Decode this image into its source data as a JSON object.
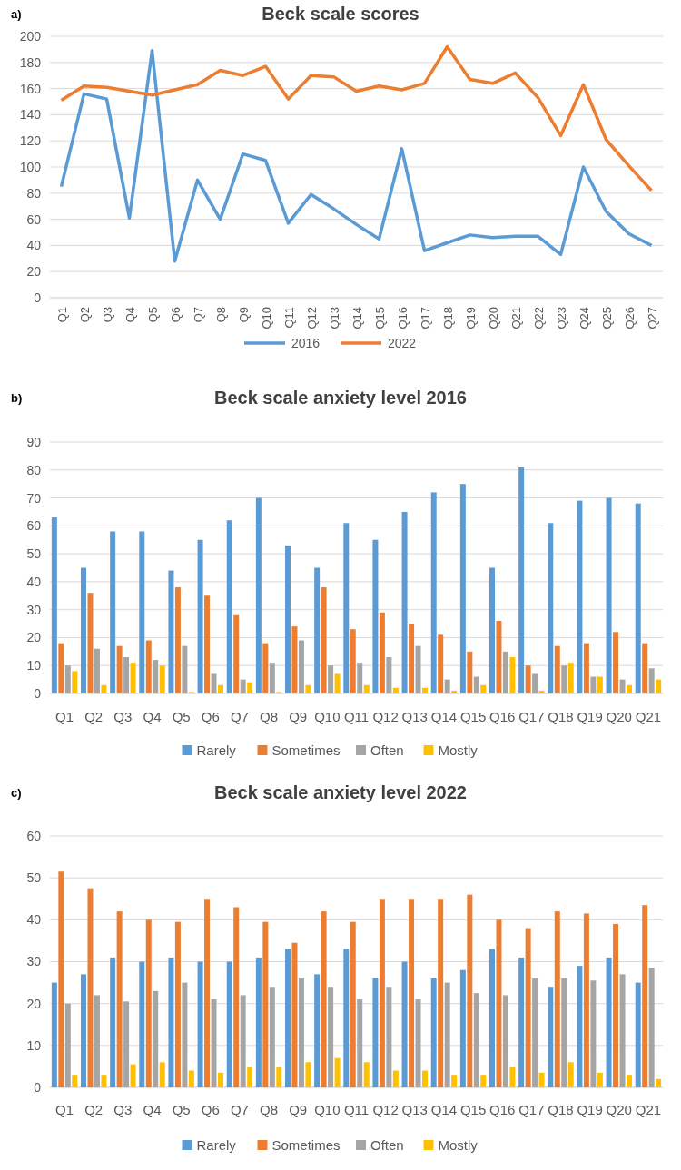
{
  "chart_data": [
    {
      "type": "line",
      "title": "Beck scale scores",
      "annotations": [
        "a)"
      ],
      "categories": [
        "Q1",
        "Q2",
        "Q3",
        "Q4",
        "Q5",
        "Q6",
        "Q7",
        "Q8",
        "Q9",
        "Q10",
        "Q11",
        "Q12",
        "Q13",
        "Q14",
        "Q15",
        "Q16",
        "Q17",
        "Q18",
        "Q19",
        "Q20",
        "Q21",
        "Q22",
        "Q23",
        "Q24",
        "Q25",
        "Q26",
        "Q27"
      ],
      "series": [
        {
          "name": "2016",
          "color": "#5b9bd5",
          "values": [
            85,
            156,
            152,
            61,
            189,
            28,
            90,
            60,
            110,
            105,
            57,
            79,
            68,
            56,
            45,
            114,
            36,
            42,
            48,
            46,
            47,
            47,
            33,
            100,
            66,
            49,
            40
          ]
        },
        {
          "name": "2022",
          "color": "#ed7d31",
          "values": [
            151,
            162,
            161,
            158,
            155,
            159,
            163,
            174,
            170,
            177,
            152,
            170,
            169,
            158,
            162,
            159,
            164,
            192,
            167,
            164,
            172,
            153,
            124,
            163,
            121,
            101,
            82
          ]
        }
      ],
      "ylim": [
        0,
        200
      ],
      "yticks": [
        0,
        20,
        40,
        60,
        80,
        100,
        120,
        140,
        160,
        180,
        200
      ],
      "grid": "y",
      "legend": "bottom",
      "marker": "none",
      "line_style": "solid"
    },
    {
      "type": "bar",
      "title": "Beck scale anxiety level 2016",
      "annotations": [
        "b)"
      ],
      "categories": [
        "Q1",
        "Q2",
        "Q3",
        "Q4",
        "Q5",
        "Q6",
        "Q7",
        "Q8",
        "Q9",
        "Q10",
        "Q11",
        "Q12",
        "Q13",
        "Q14",
        "Q15",
        "Q16",
        "Q17",
        "Q18",
        "Q19",
        "Q20",
        "Q21"
      ],
      "series": [
        {
          "name": "Rarely",
          "color": "#5b9bd5",
          "values": [
            63,
            45,
            58,
            58,
            44,
            55,
            62,
            70,
            53,
            45,
            61,
            55,
            65,
            72,
            75,
            45,
            81,
            61,
            69,
            70,
            68
          ]
        },
        {
          "name": "Sometimes",
          "color": "#ed7d31",
          "values": [
            18,
            36,
            17,
            19,
            38,
            35,
            28,
            18,
            24,
            38,
            23,
            29,
            25,
            21,
            15,
            26,
            10,
            17,
            18,
            22,
            18
          ]
        },
        {
          "name": "Often",
          "color": "#a5a5a5",
          "values": [
            10,
            16,
            13,
            12,
            17,
            7,
            5,
            11,
            19,
            10,
            11,
            13,
            17,
            5,
            6,
            15,
            7,
            10,
            6,
            5,
            9
          ]
        },
        {
          "name": "Mostly",
          "color": "#ffc000",
          "values": [
            8,
            3,
            11,
            10,
            0.5,
            3,
            4,
            0.5,
            3,
            7,
            3,
            2,
            2,
            1,
            3,
            13,
            1,
            11,
            6,
            3,
            5
          ]
        }
      ],
      "ylim": [
        0,
        90
      ],
      "yticks": [
        0,
        10,
        20,
        30,
        40,
        50,
        60,
        70,
        80,
        90
      ],
      "grid": "y",
      "legend": "bottom"
    },
    {
      "type": "bar",
      "title": "Beck scale anxiety level 2022",
      "annotations": [
        "c)"
      ],
      "categories": [
        "Q1",
        "Q2",
        "Q3",
        "Q4",
        "Q5",
        "Q6",
        "Q7",
        "Q8",
        "Q9",
        "Q10",
        "Q11",
        "Q12",
        "Q13",
        "Q14",
        "Q15",
        "Q16",
        "Q17",
        "Q18",
        "Q19",
        "Q20",
        "Q21"
      ],
      "series": [
        {
          "name": "Rarely",
          "color": "#5b9bd5",
          "values": [
            25,
            27,
            31,
            30,
            31,
            30,
            30,
            31,
            33,
            27,
            33,
            26,
            30,
            26,
            28,
            33,
            31,
            24,
            29,
            31,
            25
          ]
        },
        {
          "name": "Sometimes",
          "color": "#ed7d31",
          "values": [
            51.5,
            47.5,
            42,
            40,
            39.5,
            45,
            43,
            39.5,
            34.5,
            42,
            39.5,
            45,
            45,
            45,
            46,
            40,
            38,
            42,
            41.5,
            39,
            43.5
          ]
        },
        {
          "name": "Often",
          "color": "#a5a5a5",
          "values": [
            20,
            22,
            20.5,
            23,
            25,
            21,
            22,
            24,
            26,
            24,
            21,
            24,
            21,
            25,
            22.5,
            22,
            26,
            26,
            25.5,
            27,
            28.5
          ]
        },
        {
          "name": "Mostly",
          "color": "#ffc000",
          "values": [
            3,
            3,
            5.5,
            6,
            4,
            3.5,
            5,
            5,
            6,
            7,
            6,
            4,
            4,
            3,
            3,
            5,
            3.5,
            6,
            3.5,
            3,
            2
          ]
        }
      ],
      "ylim": [
        0,
        60
      ],
      "yticks": [
        0,
        10,
        20,
        30,
        40,
        50,
        60
      ],
      "grid": "y",
      "legend": "bottom"
    }
  ]
}
